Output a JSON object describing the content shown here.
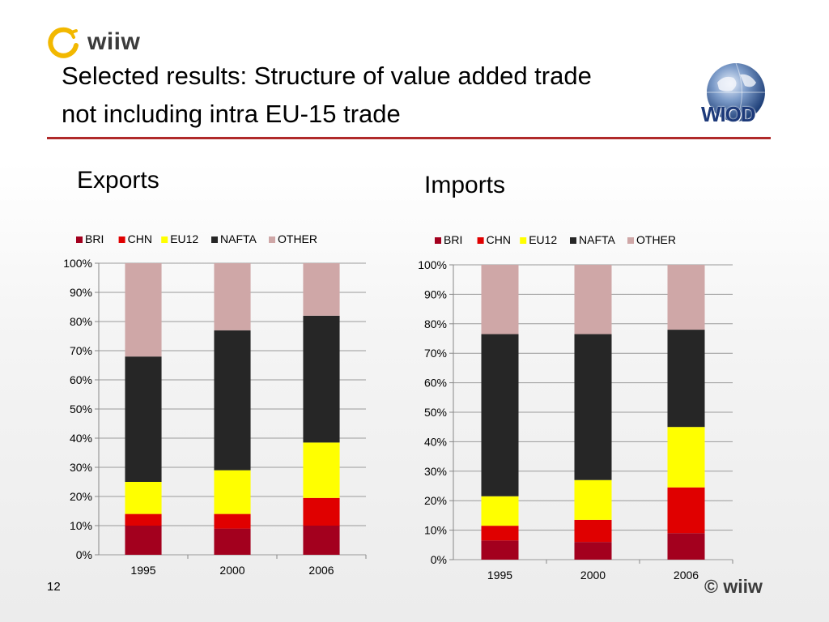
{
  "slide": {
    "brand": "wiiw",
    "title_line1": "Selected results: Structure of value added trade",
    "title_line2": "not including intra EU-15 trade",
    "wiod_logo_text": "WIOD",
    "page_number": "12",
    "copyright": "© wiiw"
  },
  "colors": {
    "BRI": "#a3001e",
    "CHN": "#e00000",
    "EU12": "#ffff00",
    "NAFTA": "#262626",
    "OTHER": "#cfa7a7",
    "rule": "#b02a2a"
  },
  "chart_data": [
    {
      "type": "bar",
      "stacked": true,
      "title": "Exports",
      "categories": [
        "1995",
        "2000",
        "2006"
      ],
      "series": [
        {
          "name": "BRI",
          "values": [
            10,
            9,
            10
          ]
        },
        {
          "name": "CHN",
          "values": [
            4,
            5,
            9.5
          ]
        },
        {
          "name": "EU12",
          "values": [
            11,
            15,
            19
          ]
        },
        {
          "name": "NAFTA",
          "values": [
            43,
            48,
            43.5
          ]
        },
        {
          "name": "OTHER",
          "values": [
            32,
            23,
            18
          ]
        }
      ],
      "ylim": [
        0,
        100
      ],
      "yticks": [
        "0%",
        "10%",
        "20%",
        "30%",
        "40%",
        "50%",
        "60%",
        "70%",
        "80%",
        "90%",
        "100%"
      ],
      "grid": true,
      "legend": "top"
    },
    {
      "type": "bar",
      "stacked": true,
      "title": "Imports",
      "categories": [
        "1995",
        "2000",
        "2006"
      ],
      "series": [
        {
          "name": "BRI",
          "values": [
            6.5,
            6,
            9
          ]
        },
        {
          "name": "CHN",
          "values": [
            5,
            7.5,
            15.5
          ]
        },
        {
          "name": "EU12",
          "values": [
            10,
            13.5,
            20.5
          ]
        },
        {
          "name": "NAFTA",
          "values": [
            55,
            49.5,
            33
          ]
        },
        {
          "name": "OTHER",
          "values": [
            23.5,
            23.5,
            22
          ]
        }
      ],
      "ylim": [
        0,
        100
      ],
      "yticks": [
        "0%",
        "10%",
        "20%",
        "30%",
        "40%",
        "50%",
        "60%",
        "70%",
        "80%",
        "90%",
        "100%"
      ],
      "grid": true,
      "legend": "top"
    }
  ]
}
